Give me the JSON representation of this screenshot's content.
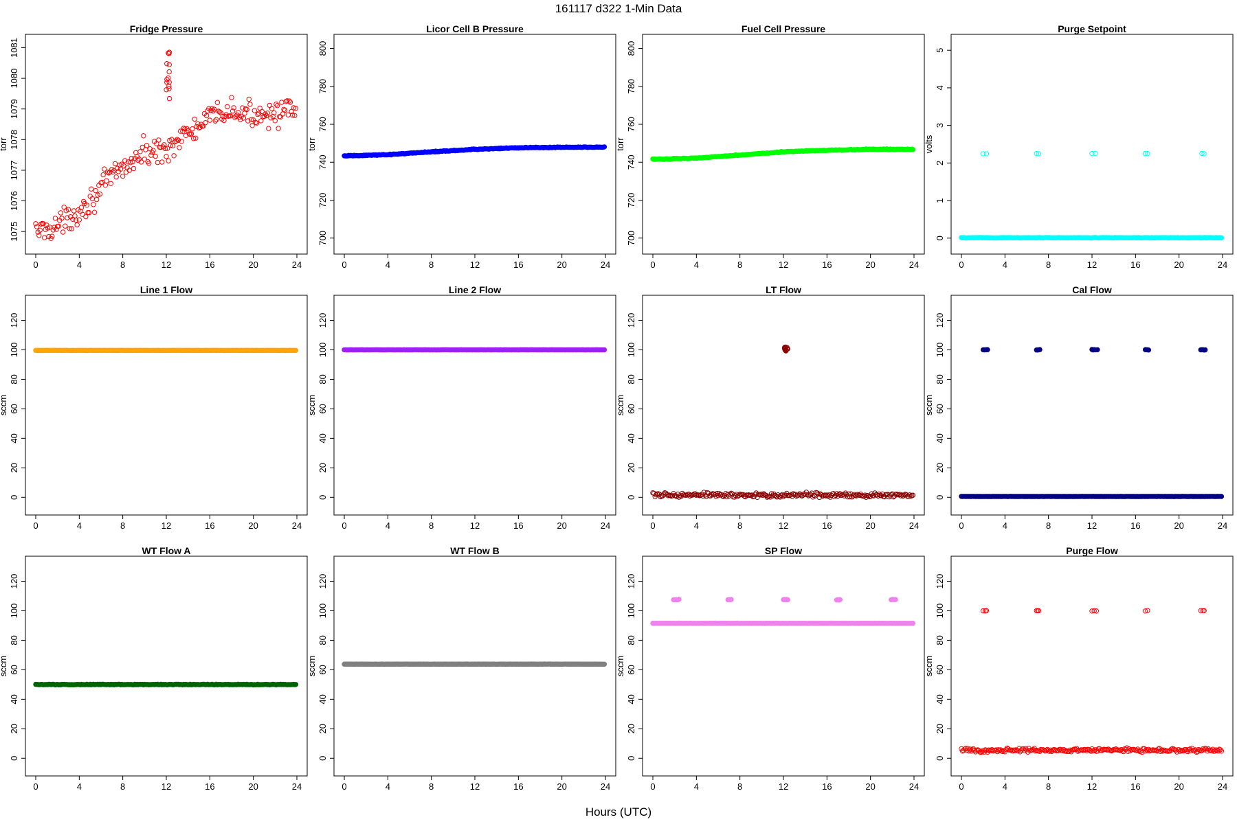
{
  "figure": {
    "title": "161117   d322   1-Min Data",
    "xlabel": "Hours (UTC)"
  },
  "chart_data": [
    {
      "type": "scatter",
      "title": "Fridge Pressure",
      "ylabel": "torr",
      "color": "#ff0000",
      "marker": "open",
      "xlim": [
        0,
        24
      ],
      "xticks": [
        0,
        4,
        8,
        12,
        16,
        20,
        24
      ],
      "ylim": [
        1074.6,
        1081.1
      ],
      "yticks": [
        1075,
        1076,
        1077,
        1078,
        1079,
        1080,
        1081
      ],
      "trend": [
        [
          0,
          1075.0
        ],
        [
          1,
          1075.1
        ],
        [
          2,
          1075.2
        ],
        [
          3,
          1075.4
        ],
        [
          4,
          1075.7
        ],
        [
          5,
          1076.0
        ],
        [
          6,
          1076.4
        ],
        [
          7,
          1076.8
        ],
        [
          8,
          1077.1
        ],
        [
          9,
          1077.3
        ],
        [
          10,
          1077.6
        ],
        [
          11,
          1077.6
        ],
        [
          12,
          1077.7
        ],
        [
          13,
          1078.0
        ],
        [
          14,
          1078.2
        ],
        [
          15,
          1078.4
        ],
        [
          16,
          1078.7
        ],
        [
          17,
          1078.9
        ],
        [
          18,
          1078.9
        ],
        [
          19,
          1078.8
        ],
        [
          20,
          1078.8
        ],
        [
          21,
          1078.9
        ],
        [
          22,
          1078.9
        ],
        [
          23,
          1078.9
        ],
        [
          24,
          1078.9
        ]
      ],
      "noise": 0.6,
      "spike": {
        "x": [
          12.0,
          12.3
        ],
        "y": [
          1079.2,
          1080.9
        ]
      }
    },
    {
      "type": "scatter",
      "title": "Licor Cell B Pressure",
      "ylabel": "torr",
      "color": "#0000ff",
      "marker": "filled",
      "xlim": [
        0,
        24
      ],
      "xticks": [
        0,
        4,
        8,
        12,
        16,
        20,
        24
      ],
      "ylim": [
        697,
        802
      ],
      "yticks": [
        700,
        720,
        740,
        760,
        780,
        800
      ],
      "trend": [
        [
          0,
          743.3
        ],
        [
          4,
          744.0
        ],
        [
          8,
          745.5
        ],
        [
          12,
          746.8
        ],
        [
          16,
          747.6
        ],
        [
          20,
          747.9
        ],
        [
          24,
          748.0
        ]
      ],
      "noise": 0.3
    },
    {
      "type": "scatter",
      "title": "Fuel Cell Pressure",
      "ylabel": "torr",
      "color": "#00ff00",
      "marker": "filled",
      "xlim": [
        0,
        24
      ],
      "xticks": [
        0,
        4,
        8,
        12,
        16,
        20,
        24
      ],
      "ylim": [
        697,
        802
      ],
      "yticks": [
        700,
        720,
        740,
        760,
        780,
        800
      ],
      "trend": [
        [
          0,
          741.5
        ],
        [
          4,
          742.2
        ],
        [
          8,
          743.8
        ],
        [
          12,
          745.5
        ],
        [
          16,
          746.3
        ],
        [
          20,
          746.8
        ],
        [
          24,
          746.8
        ]
      ],
      "noise": 0.3
    },
    {
      "type": "scatter",
      "title": "Purge Setpoint",
      "ylabel": "volts",
      "color": "#00ffff",
      "marker": "filled",
      "xlim": [
        0,
        24
      ],
      "xticks": [
        0,
        4,
        8,
        12,
        16,
        20,
        24
      ],
      "ylim": [
        -0.15,
        5.15
      ],
      "yticks": [
        0,
        1,
        2,
        3,
        4,
        5
      ],
      "trend": [
        [
          0,
          0.01
        ],
        [
          24,
          0.01
        ]
      ],
      "noise": 0.01,
      "cycle_points": {
        "x": [
          2.0,
          2.3,
          6.9,
          7.1,
          12.0,
          12.3,
          16.9,
          17.1,
          22.1,
          22.3
        ],
        "y": 2.25,
        "marker": "open"
      }
    },
    {
      "type": "scatter",
      "title": "Line 1 Flow",
      "ylabel": "sccm",
      "color": "#ffa500",
      "marker": "filled",
      "xlim": [
        0,
        24
      ],
      "xticks": [
        0,
        4,
        8,
        12,
        16,
        20,
        24
      ],
      "ylim": [
        -5,
        130
      ],
      "yticks": [
        0,
        20,
        40,
        60,
        80,
        100,
        120
      ],
      "trend": [
        [
          0,
          99.6
        ],
        [
          24,
          99.6
        ]
      ],
      "noise": 0.1
    },
    {
      "type": "scatter",
      "title": "Line 2 Flow",
      "ylabel": "sccm",
      "color": "#a020f0",
      "marker": "filled",
      "xlim": [
        0,
        24
      ],
      "xticks": [
        0,
        4,
        8,
        12,
        16,
        20,
        24
      ],
      "ylim": [
        -5,
        130
      ],
      "yticks": [
        0,
        20,
        40,
        60,
        80,
        100,
        120
      ],
      "trend": [
        [
          0,
          100.0
        ],
        [
          24,
          100.0
        ]
      ],
      "noise": 0.1
    },
    {
      "type": "scatter",
      "title": "LT Flow",
      "ylabel": "sccm",
      "color": "#8b0000",
      "marker": "open",
      "xlim": [
        0,
        24
      ],
      "xticks": [
        0,
        4,
        8,
        12,
        16,
        20,
        24
      ],
      "ylim": [
        -5,
        130
      ],
      "yticks": [
        0,
        20,
        40,
        60,
        80,
        100,
        120
      ],
      "trend": [
        [
          0,
          1.5
        ],
        [
          24,
          1.5
        ]
      ],
      "noise": 2.2,
      "spike": {
        "x": [
          12.1,
          12.4
        ],
        "y": [
          98,
          102
        ]
      }
    },
    {
      "type": "scatter",
      "title": "Cal Flow",
      "ylabel": "sccm",
      "color": "#000080",
      "marker": "filled",
      "xlim": [
        0,
        24
      ],
      "xticks": [
        0,
        4,
        8,
        12,
        16,
        20,
        24
      ],
      "ylim": [
        -5,
        130
      ],
      "yticks": [
        0,
        20,
        40,
        60,
        80,
        100,
        120
      ],
      "trend": [
        [
          0,
          0.6
        ],
        [
          24,
          0.6
        ]
      ],
      "noise": 0.1,
      "cycle_points": {
        "x": [
          2.0,
          2.1,
          2.2,
          2.3,
          2.4,
          6.9,
          7.0,
          7.1,
          7.2,
          12.0,
          12.1,
          12.2,
          12.3,
          12.5,
          16.9,
          17.0,
          17.1,
          17.2,
          22.0,
          22.1,
          22.2,
          22.3,
          22.4
        ],
        "y": 100,
        "marker": "filled"
      }
    },
    {
      "type": "scatter",
      "title": "WT Flow A",
      "ylabel": "sccm",
      "color": "#006400",
      "marker": "filled",
      "xlim": [
        0,
        24
      ],
      "xticks": [
        0,
        4,
        8,
        12,
        16,
        20,
        24
      ],
      "ylim": [
        -5,
        130
      ],
      "yticks": [
        0,
        20,
        40,
        60,
        80,
        100,
        120
      ],
      "trend": [
        [
          0,
          50.0
        ],
        [
          24,
          50.0
        ]
      ],
      "noise": 0.3
    },
    {
      "type": "scatter",
      "title": "WT Flow B",
      "ylabel": "sccm",
      "color": "#808080",
      "marker": "filled",
      "xlim": [
        0,
        24
      ],
      "xticks": [
        0,
        4,
        8,
        12,
        16,
        20,
        24
      ],
      "ylim": [
        -5,
        130
      ],
      "yticks": [
        0,
        20,
        40,
        60,
        80,
        100,
        120
      ],
      "trend": [
        [
          0,
          63.8
        ],
        [
          24,
          63.8
        ]
      ],
      "noise": 0.1
    },
    {
      "type": "scatter",
      "title": "SP Flow",
      "ylabel": "sccm",
      "color": "#ee82ee",
      "marker": "filled",
      "xlim": [
        0,
        24
      ],
      "xticks": [
        0,
        4,
        8,
        12,
        16,
        20,
        24
      ],
      "ylim": [
        -5,
        130
      ],
      "yticks": [
        0,
        20,
        40,
        60,
        80,
        100,
        120
      ],
      "trend": [
        [
          0,
          91.5
        ],
        [
          24,
          91.5
        ]
      ],
      "noise": 0.1,
      "cycle_points": {
        "x": [
          1.9,
          2.0,
          2.1,
          2.2,
          2.3,
          2.4,
          6.9,
          7.0,
          7.1,
          7.2,
          12.0,
          12.1,
          12.2,
          12.3,
          12.4,
          16.9,
          17.0,
          17.1,
          17.2,
          21.9,
          22.0,
          22.1,
          22.2,
          22.3
        ],
        "y": 107.5,
        "marker": "filled"
      }
    },
    {
      "type": "scatter",
      "title": "Purge Flow",
      "ylabel": "sccm",
      "color": "#ff0000",
      "marker": "open",
      "xlim": [
        0,
        24
      ],
      "xticks": [
        0,
        4,
        8,
        12,
        16,
        20,
        24
      ],
      "ylim": [
        -5,
        130
      ],
      "yticks": [
        0,
        20,
        40,
        60,
        80,
        100,
        120
      ],
      "trend": [
        [
          0,
          5.5
        ],
        [
          24,
          5.5
        ]
      ],
      "noise": 1.8,
      "cycle_points": {
        "x": [
          2.0,
          2.2,
          2.3,
          6.9,
          7.0,
          7.1,
          12.0,
          12.2,
          12.4,
          16.9,
          17.1,
          22.0,
          22.2,
          22.3
        ],
        "y": 100,
        "marker": "open"
      }
    }
  ]
}
